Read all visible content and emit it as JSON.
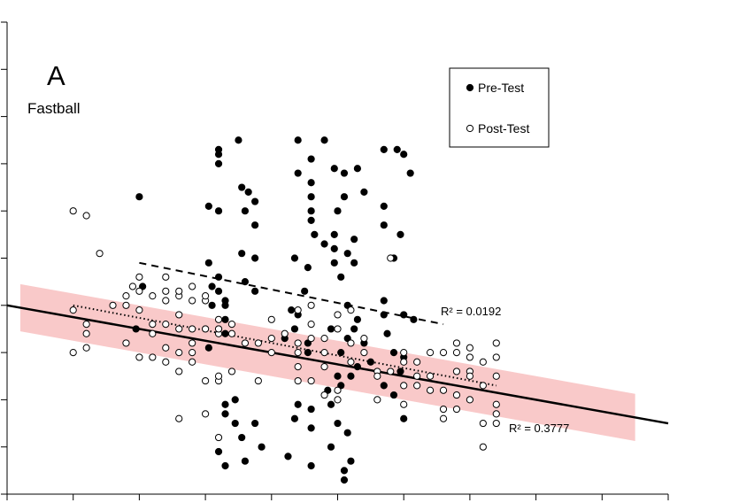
{
  "panel": {
    "letter": "A",
    "label": "Fastball"
  },
  "legend": {
    "placement": "top-right",
    "pre_label": "Pre-Test",
    "post_label": "Post-Test"
  },
  "chart_data": {
    "type": "scatter",
    "title": "",
    "xlabel": "",
    "ylabel": "",
    "xlim": [
      0,
      10
    ],
    "ylim": [
      0,
      10
    ],
    "grid": false,
    "tick_labels": "none",
    "x_ticks": [
      0,
      1,
      2,
      3,
      4,
      5,
      6,
      7,
      8,
      9,
      10
    ],
    "y_ticks": [
      0,
      1,
      2,
      3,
      4,
      5,
      6,
      7,
      8,
      9,
      10
    ],
    "series": [
      {
        "name": "Pre-Test",
        "marker": "filled-circle",
        "points": [
          [
            2,
            6.3
          ],
          [
            1.95,
            3.5
          ],
          [
            2.05,
            4.4
          ],
          [
            3.2,
            7.2
          ],
          [
            3.2,
            7.3
          ],
          [
            3.2,
            7.0
          ],
          [
            3.05,
            6.1
          ],
          [
            3.2,
            6.0
          ],
          [
            3.05,
            4.9
          ],
          [
            3.2,
            4.6
          ],
          [
            3.2,
            4.3
          ],
          [
            3.3,
            4.1
          ],
          [
            3.3,
            3.7
          ],
          [
            3.3,
            3.4
          ],
          [
            3.05,
            3.1
          ],
          [
            3.3,
            1.9
          ],
          [
            3.3,
            1.7
          ],
          [
            3.2,
            0.9
          ],
          [
            3.3,
            0.6
          ],
          [
            3.1,
            4.0
          ],
          [
            3.1,
            4.4
          ],
          [
            3.3,
            4.0
          ],
          [
            3.5,
            7.5
          ],
          [
            3.55,
            6.5
          ],
          [
            3.65,
            6.4
          ],
          [
            3.75,
            6.2
          ],
          [
            3.6,
            6.0
          ],
          [
            3.75,
            5.7
          ],
          [
            3.55,
            5.1
          ],
          [
            3.75,
            5.0
          ],
          [
            3.6,
            4.5
          ],
          [
            3.75,
            4.3
          ],
          [
            3.45,
            2.0
          ],
          [
            3.45,
            1.5
          ],
          [
            3.55,
            1.2
          ],
          [
            3.75,
            1.5
          ],
          [
            3.85,
            1.0
          ],
          [
            3.6,
            0.7
          ],
          [
            4.4,
            7.5
          ],
          [
            4.6,
            7.1
          ],
          [
            4.4,
            6.8
          ],
          [
            4.6,
            6.6
          ],
          [
            4.6,
            6.3
          ],
          [
            4.6,
            6.0
          ],
          [
            4.6,
            5.8
          ],
          [
            4.65,
            5.5
          ],
          [
            4.35,
            5.0
          ],
          [
            4.55,
            4.8
          ],
          [
            4.5,
            4.3
          ],
          [
            4.4,
            3.8
          ],
          [
            4.35,
            3.5
          ],
          [
            4.55,
            3.2
          ],
          [
            4.55,
            3.0
          ],
          [
            4.4,
            1.9
          ],
          [
            4.6,
            1.8
          ],
          [
            4.6,
            1.4
          ],
          [
            4.35,
            1.6
          ],
          [
            4.25,
            0.8
          ],
          [
            4.6,
            0.6
          ],
          [
            4.2,
            3.3
          ],
          [
            4.3,
            3.9
          ],
          [
            4.8,
            7.5
          ],
          [
            4.95,
            6.9
          ],
          [
            5.1,
            6.8
          ],
          [
            5.1,
            6.3
          ],
          [
            5.0,
            6.0
          ],
          [
            5.3,
            6.9
          ],
          [
            4.95,
            5.5
          ],
          [
            4.8,
            5.3
          ],
          [
            4.95,
            5.2
          ],
          [
            4.95,
            4.9
          ],
          [
            5.15,
            5.1
          ],
          [
            5.25,
            5.4
          ],
          [
            5.05,
            4.6
          ],
          [
            5.15,
            4.0
          ],
          [
            4.9,
            3.5
          ],
          [
            5.05,
            3.0
          ],
          [
            5.05,
            2.3
          ],
          [
            5.2,
            2.5
          ],
          [
            4.85,
            2.2
          ],
          [
            5.0,
            1.5
          ],
          [
            4.9,
            1.0
          ],
          [
            5.1,
            0.5
          ],
          [
            5.2,
            0.7
          ],
          [
            5.15,
            1.3
          ],
          [
            5.1,
            0.3
          ],
          [
            5.4,
            6.4
          ],
          [
            5.25,
            4.9
          ],
          [
            5.15,
            3.3
          ],
          [
            5.25,
            3.5
          ],
          [
            5.4,
            3.2
          ],
          [
            5.5,
            2.8
          ],
          [
            5.3,
            3.7
          ],
          [
            5.7,
            7.3
          ],
          [
            5.7,
            5.7
          ],
          [
            5.9,
            7.3
          ],
          [
            6.0,
            7.2
          ],
          [
            6.1,
            6.8
          ],
          [
            5.7,
            6.1
          ],
          [
            5.85,
            5.0
          ],
          [
            5.95,
            5.5
          ],
          [
            5.7,
            4.1
          ],
          [
            5.7,
            3.8
          ],
          [
            5.75,
            3.4
          ],
          [
            5.85,
            3.0
          ],
          [
            5.7,
            2.3
          ],
          [
            5.85,
            2.1
          ],
          [
            5.95,
            2.6
          ],
          [
            6.0,
            1.6
          ],
          [
            6.0,
            3.8
          ],
          [
            6.0,
            2.9
          ],
          [
            6.15,
            3.7
          ],
          [
            5.3,
            2.7
          ],
          [
            4.9,
            1.9
          ],
          [
            5.0,
            2.5
          ]
        ]
      },
      {
        "name": "Post-Test",
        "marker": "open-circle",
        "points": [
          [
            1,
            6.0
          ],
          [
            1.2,
            5.9
          ],
          [
            1.4,
            5.1
          ],
          [
            1.0,
            3.9
          ],
          [
            1.0,
            3.0
          ],
          [
            1.2,
            3.6
          ],
          [
            1.2,
            3.4
          ],
          [
            1.2,
            3.1
          ],
          [
            1.6,
            4.0
          ],
          [
            1.9,
            4.4
          ],
          [
            1.8,
            4.2
          ],
          [
            1.8,
            4.0
          ],
          [
            2.0,
            4.6
          ],
          [
            2.0,
            4.3
          ],
          [
            2.0,
            3.9
          ],
          [
            2.2,
            4.2
          ],
          [
            2.2,
            3.6
          ],
          [
            2.2,
            3.4
          ],
          [
            1.8,
            3.2
          ],
          [
            2.0,
            2.9
          ],
          [
            2.2,
            2.9
          ],
          [
            2.4,
            4.6
          ],
          [
            2.4,
            4.3
          ],
          [
            2.4,
            4.1
          ],
          [
            2.4,
            3.6
          ],
          [
            2.6,
            4.2
          ],
          [
            2.6,
            4.3
          ],
          [
            2.6,
            3.8
          ],
          [
            2.6,
            3.5
          ],
          [
            2.4,
            3.1
          ],
          [
            2.4,
            2.8
          ],
          [
            2.6,
            3.0
          ],
          [
            2.6,
            2.6
          ],
          [
            2.8,
            4.4
          ],
          [
            2.8,
            4.1
          ],
          [
            2.8,
            3.5
          ],
          [
            2.8,
            3.2
          ],
          [
            2.8,
            3.0
          ],
          [
            2.8,
            2.8
          ],
          [
            2.6,
            1.6
          ],
          [
            3.0,
            1.7
          ],
          [
            3.0,
            4.1
          ],
          [
            3.0,
            4.2
          ],
          [
            3.0,
            3.5
          ],
          [
            3.0,
            2.4
          ],
          [
            3.2,
            2.4
          ],
          [
            3.4,
            2.6
          ],
          [
            3.2,
            2.5
          ],
          [
            3.2,
            3.4
          ],
          [
            3.2,
            3.5
          ],
          [
            3.2,
            3.7
          ],
          [
            3.4,
            3.6
          ],
          [
            3.4,
            3.4
          ],
          [
            3.6,
            3.2
          ],
          [
            3.8,
            3.2
          ],
          [
            3.8,
            2.4
          ],
          [
            3.2,
            1.2
          ],
          [
            4.0,
            3.7
          ],
          [
            4.0,
            3.3
          ],
          [
            4.0,
            3.0
          ],
          [
            4.2,
            3.4
          ],
          [
            4.4,
            3.0
          ],
          [
            4.4,
            3.2
          ],
          [
            4.4,
            2.7
          ],
          [
            4.4,
            2.4
          ],
          [
            4.6,
            2.4
          ],
          [
            4.6,
            3.3
          ],
          [
            4.4,
            3.9
          ],
          [
            4.6,
            4.0
          ],
          [
            4.6,
            3.6
          ],
          [
            4.8,
            3.3
          ],
          [
            4.8,
            3.0
          ],
          [
            4.8,
            2.7
          ],
          [
            4.8,
            2.1
          ],
          [
            5.0,
            2.2
          ],
          [
            5.0,
            2.0
          ],
          [
            5.0,
            3.8
          ],
          [
            5.0,
            3.5
          ],
          [
            5.2,
            3.9
          ],
          [
            5.2,
            3.2
          ],
          [
            5.2,
            2.8
          ],
          [
            5.4,
            3.3
          ],
          [
            5.4,
            3.0
          ],
          [
            5.6,
            2.6
          ],
          [
            5.6,
            2.5
          ],
          [
            5.6,
            2.0
          ],
          [
            5.8,
            2.6
          ],
          [
            5.8,
            5.0
          ],
          [
            6.0,
            3.0
          ],
          [
            6.0,
            2.8
          ],
          [
            6.0,
            2.3
          ],
          [
            6.0,
            1.9
          ],
          [
            6.2,
            2.8
          ],
          [
            6.2,
            2.5
          ],
          [
            6.2,
            2.3
          ],
          [
            6.4,
            3.0
          ],
          [
            6.4,
            2.5
          ],
          [
            6.4,
            2.2
          ],
          [
            6.6,
            3.0
          ],
          [
            6.6,
            2.2
          ],
          [
            6.6,
            1.8
          ],
          [
            6.6,
            1.6
          ],
          [
            6.8,
            3.2
          ],
          [
            6.8,
            3.0
          ],
          [
            6.8,
            2.6
          ],
          [
            6.8,
            2.1
          ],
          [
            6.8,
            1.8
          ],
          [
            7.0,
            2.6
          ],
          [
            7.0,
            3.1
          ],
          [
            7.0,
            2.9
          ],
          [
            7.0,
            2.5
          ],
          [
            7.2,
            2.8
          ],
          [
            7.2,
            2.3
          ],
          [
            7.4,
            3.2
          ],
          [
            7.4,
            2.9
          ],
          [
            7.4,
            2.5
          ],
          [
            7.4,
            1.9
          ],
          [
            7.4,
            1.5
          ],
          [
            7.4,
            1.7
          ],
          [
            7.2,
            1.0
          ],
          [
            7.0,
            2.0
          ],
          [
            7.2,
            1.5
          ]
        ]
      }
    ],
    "trendlines": [
      {
        "series": "Pre-Test",
        "style": "dashed",
        "from": [
          2,
          4.9
        ],
        "to": [
          6.6,
          3.6
        ],
        "label": "R² = 0.0192"
      },
      {
        "series": "Post-Test",
        "style": "dotted",
        "from": [
          1,
          4.0
        ],
        "to": [
          7.4,
          2.3
        ],
        "label": ""
      },
      {
        "series": "Combined",
        "style": "solid",
        "from": [
          0,
          4.0
        ],
        "to": [
          10,
          1.5
        ],
        "label": "R² = 0.3777",
        "band_half_width": 0.5,
        "band_color": "#f9c9c9"
      }
    ]
  }
}
